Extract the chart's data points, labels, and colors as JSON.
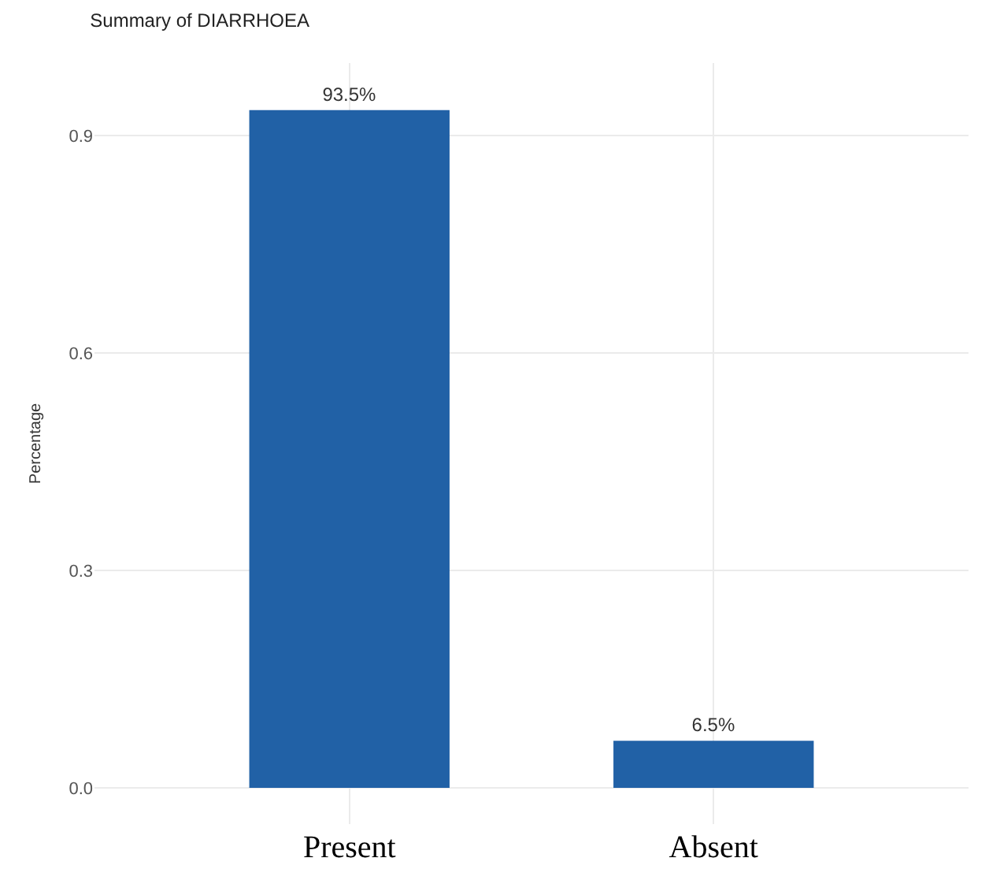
{
  "chart_data": {
    "type": "bar",
    "title": "Summary of DIARRHOEA",
    "ylabel": "Percentage",
    "categories": [
      "Present",
      "Absent"
    ],
    "values": [
      0.935,
      0.065
    ],
    "color": "#2161a6",
    "value_labels": [
      "93.5%",
      "6.5%"
    ],
    "ylim": [
      -0.05,
      1.0
    ],
    "yticks": [
      {
        "value": 0,
        "label": "0.0"
      },
      {
        "value": 0.3,
        "label": "0.3"
      },
      {
        "value": 0.6,
        "label": "0.6"
      },
      {
        "value": 0.9,
        "label": "0.9"
      }
    ],
    "grid": true
  }
}
